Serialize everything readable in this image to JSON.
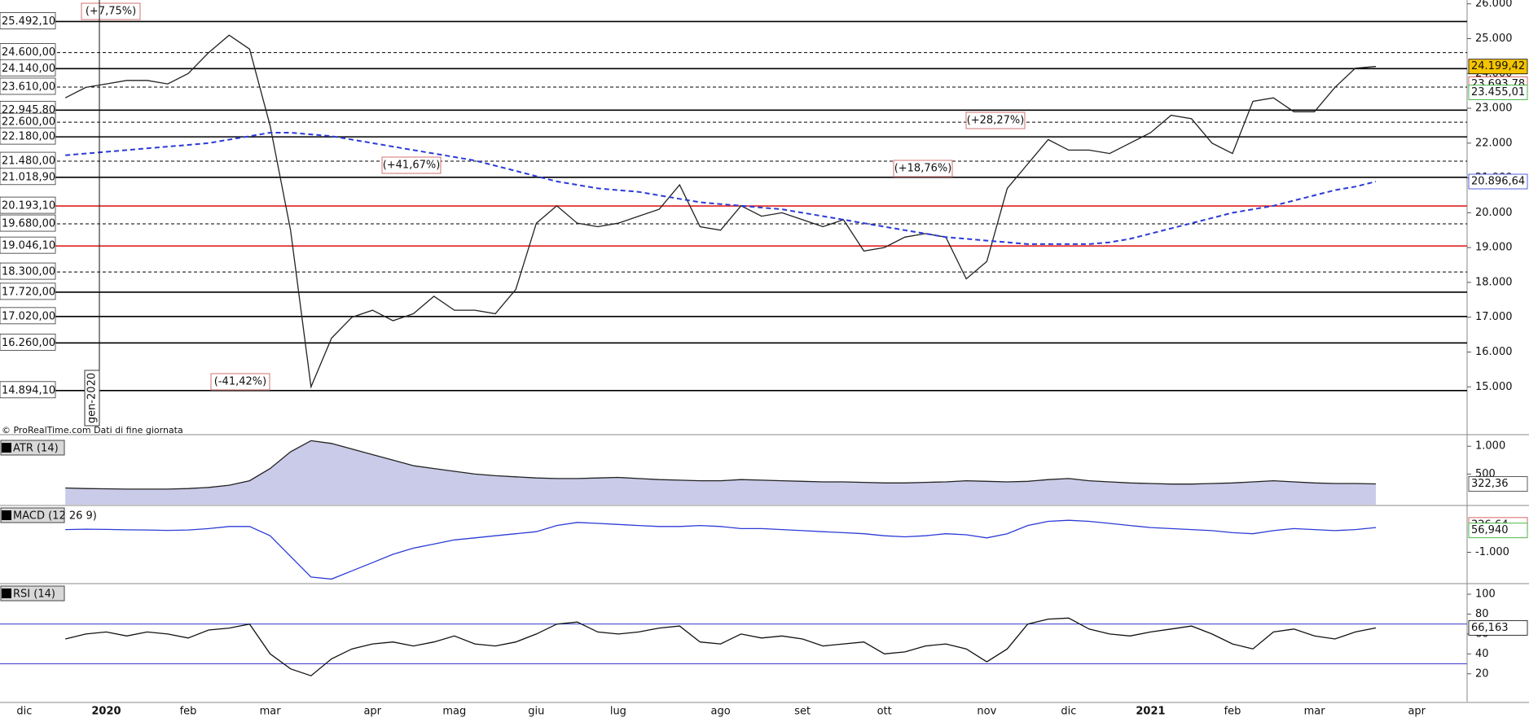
{
  "chart_data": [
    {
      "type": "line",
      "categories": [
        null,
        "dic",
        null,
        null,
        null,
        "2020",
        null,
        null,
        null,
        "feb",
        null,
        null,
        null,
        "mar",
        null,
        null,
        null,
        null,
        "apr",
        null,
        null,
        null,
        "mag",
        null,
        null,
        null,
        "giu",
        null,
        null,
        null,
        "lug",
        null,
        null,
        null,
        null,
        "ago",
        null,
        null,
        null,
        "set",
        null,
        null,
        null,
        "ott",
        null,
        null,
        null,
        null,
        "nov",
        null,
        null,
        null,
        "dic",
        null,
        null,
        null,
        "2021",
        null,
        null,
        null,
        "feb",
        null,
        null,
        null,
        "mar",
        null,
        null,
        null,
        null,
        "apr",
        null
      ],
      "series": [
        {
          "color": "#222222",
          "values": [
            null,
            null,
            null,
            23300,
            23600,
            23700,
            23800,
            23800,
            23700,
            24000,
            24600,
            25100,
            24700,
            22500,
            19500,
            15000,
            16400,
            17000,
            17200,
            16900,
            17100,
            17600,
            17200,
            17200,
            17100,
            17800,
            19700,
            20200,
            19700,
            19600,
            19700,
            19900,
            20100,
            20800,
            19600,
            19500,
            20200,
            19900,
            20000,
            19800,
            19600,
            19800,
            18900,
            19000,
            19300,
            19400,
            19300,
            18100,
            18600,
            20700,
            21400,
            22100,
            21800,
            21800,
            21700,
            22000,
            22300,
            22800,
            22700,
            22000,
            21700,
            23200,
            23300,
            22900,
            22900,
            23600,
            24150,
            24199.42,
            null,
            null,
            null
          ]
        },
        {
          "color": "#2b3bd6",
          "dashed": true,
          "values": [
            null,
            null,
            null,
            21650,
            21700,
            21750,
            21800,
            21850,
            21900,
            21950,
            22000,
            22100,
            22200,
            22300,
            22300,
            22250,
            22200,
            22100,
            22000,
            21900,
            21800,
            21700,
            21600,
            21500,
            21350,
            21200,
            21050,
            20900,
            20800,
            20700,
            20650,
            20600,
            20500,
            20400,
            20300,
            20250,
            20200,
            20150,
            20100,
            20000,
            19900,
            19800,
            19700,
            19600,
            19500,
            19400,
            19300,
            19250,
            19200,
            19150,
            19100,
            19100,
            19100,
            19100,
            19150,
            19250,
            19400,
            19550,
            19700,
            19850,
            20000,
            20100,
            20200,
            20350,
            20500,
            20650,
            20750,
            20896.64,
            null,
            null,
            null
          ]
        }
      ],
      "ylim": [
        13650,
        26110
      ],
      "yticks": [
        {
          "value": 15000,
          "label": "15.000"
        },
        {
          "value": 16000,
          "label": "16.000"
        },
        {
          "value": 17000,
          "label": "17.000"
        },
        {
          "value": 18000,
          "label": "18.000"
        },
        {
          "value": 19000,
          "label": "19.000"
        },
        {
          "value": 20000,
          "label": "20.000"
        },
        {
          "value": 21000,
          "label": "21.000"
        },
        {
          "value": 22000,
          "label": "22.000"
        },
        {
          "value": 23000,
          "label": "23.000"
        },
        {
          "value": 24000,
          "label": "24.000"
        },
        {
          "value": 25000,
          "label": "25.000"
        },
        {
          "value": 26000,
          "label": "26.000"
        }
      ],
      "levels": [
        {
          "value": 25492.1,
          "label": "25.492,10",
          "color": "#000000",
          "dashed": false
        },
        {
          "value": 24600,
          "label": "24.600,00",
          "color": "#000000",
          "dashed": true
        },
        {
          "value": 24140,
          "label": "24.140,00",
          "color": "#000000",
          "dashed": false
        },
        {
          "value": 23610,
          "label": "23.610,00",
          "color": "#000000",
          "dashed": true
        },
        {
          "value": 22945.8,
          "label": "22.945,80",
          "color": "#000000",
          "dashed": false
        },
        {
          "value": 22600,
          "label": "22.600,00",
          "color": "#000000",
          "dashed": true
        },
        {
          "value": 22180,
          "label": "22.180,00",
          "color": "#000000",
          "dashed": false
        },
        {
          "value": 21480,
          "label": "21.480,00",
          "color": "#000000",
          "dashed": true
        },
        {
          "value": 21018.9,
          "label": "21.018,90",
          "color": "#000000",
          "dashed": false
        },
        {
          "value": 20193.1,
          "label": "20.193,10",
          "color": "#e02020",
          "dashed": false
        },
        {
          "value": 19680,
          "label": "19.680,00",
          "color": "#000000",
          "dashed": true
        },
        {
          "value": 19046.1,
          "label": "19.046,10",
          "color": "#e02020",
          "dashed": false
        },
        {
          "value": 18300,
          "label": "18.300,00",
          "color": "#000000",
          "dashed": true
        },
        {
          "value": 17720,
          "label": "17.720,00",
          "color": "#000000",
          "dashed": false
        },
        {
          "value": 17020,
          "label": "17.020,00",
          "color": "#000000",
          "dashed": false
        },
        {
          "value": 16260,
          "label": "16.260,00",
          "color": "#000000",
          "dashed": false
        },
        {
          "value": 14894.1,
          "label": "14.894,10",
          "color": "#000000",
          "dashed": false
        }
      ],
      "right_labels": [
        {
          "value": 24199.42,
          "label": "24.199,42",
          "color": "#000000",
          "background": "#f5c400"
        },
        {
          "value": 23693.78,
          "label": "23.693,78",
          "color": "#d04040",
          "background": "#ffffff"
        },
        {
          "value": 23455.01,
          "label": "23.455,01",
          "color": "#22aa22",
          "background": "#ffffff"
        },
        {
          "value": 20896.64,
          "label": "20.896,64",
          "color": "#2b3bd6",
          "background": "#ffffff"
        }
      ],
      "annotations": [
        "(+7,75%)",
        "(-41,42%)",
        "(+41,67%)",
        "(+18,76%)",
        "(+28,27%)"
      ],
      "marker": "gen-2020",
      "credit": "© ProRealTime.com  Dati di fine giornata"
    },
    {
      "type": "area",
      "label": "ATR (14)",
      "color": "#222222",
      "fill": "#c9cbe8",
      "values": [
        null,
        null,
        null,
        250,
        240,
        235,
        230,
        230,
        230,
        240,
        260,
        300,
        380,
        600,
        900,
        1100,
        1050,
        950,
        850,
        750,
        650,
        600,
        550,
        500,
        470,
        450,
        430,
        420,
        420,
        430,
        440,
        420,
        400,
        390,
        380,
        380,
        400,
        390,
        380,
        370,
        360,
        360,
        350,
        340,
        340,
        350,
        360,
        380,
        370,
        360,
        370,
        400,
        420,
        380,
        360,
        340,
        330,
        320,
        320,
        330,
        340,
        360,
        380,
        360,
        340,
        330,
        330,
        322.36,
        null,
        null,
        null
      ],
      "ylim": [
        -50,
        1120
      ],
      "yticks": [
        {
          "value": 1000,
          "label": "1.000"
        },
        500
      ],
      "right_labels": [
        {
          "value": 322.36,
          "label": "322,36"
        }
      ]
    },
    {
      "type": "line",
      "label": "MACD (12 26 9)",
      "color": "#2b3bd6",
      "values": [
        null,
        null,
        null,
        100,
        120,
        110,
        90,
        80,
        60,
        80,
        150,
        250,
        250,
        -200,
        -1200,
        -2200,
        -2300,
        -1900,
        -1500,
        -1100,
        -800,
        -600,
        -400,
        -300,
        -200,
        -100,
        0,
        300,
        450,
        400,
        350,
        300,
        250,
        250,
        300,
        250,
        150,
        150,
        100,
        50,
        0,
        -50,
        -100,
        -200,
        -250,
        -200,
        -100,
        -150,
        -300,
        -100,
        300,
        500,
        550,
        500,
        400,
        300,
        200,
        150,
        100,
        50,
        -50,
        -100,
        50,
        150,
        100,
        50,
        100,
        200,
        null,
        null,
        null
      ],
      "ylim": [
        -2480,
        1190
      ],
      "yticks": [
        {
          "value": -1000,
          "label": "-1.000"
        }
      ],
      "right_labels": [
        {
          "value": 326.64,
          "label": "326,64",
          "color": "#d04040"
        },
        {
          "value": 56.94,
          "label": "56,940",
          "color": "#22aa22"
        }
      ]
    },
    {
      "type": "line",
      "label": "RSI (14)",
      "color": "#111111",
      "values": [
        null,
        null,
        null,
        55,
        60,
        62,
        58,
        62,
        60,
        56,
        64,
        66,
        70,
        40,
        25,
        18,
        35,
        45,
        50,
        52,
        48,
        52,
        58,
        50,
        48,
        52,
        60,
        70,
        72,
        62,
        60,
        62,
        66,
        68,
        52,
        50,
        60,
        56,
        58,
        55,
        48,
        50,
        52,
        40,
        42,
        48,
        50,
        45,
        32,
        45,
        70,
        75,
        76,
        65,
        60,
        58,
        62,
        65,
        68,
        60,
        50,
        45,
        62,
        65,
        58,
        55,
        62,
        66.163,
        null,
        null,
        null
      ],
      "ylim": [
        -8,
        109
      ],
      "yticks": [
        20,
        40,
        60,
        80,
        100
      ],
      "bands": [
        30,
        70
      ],
      "right_labels": [
        {
          "value": 66.163,
          "label": "66,163",
          "color": "#000000"
        }
      ]
    }
  ]
}
